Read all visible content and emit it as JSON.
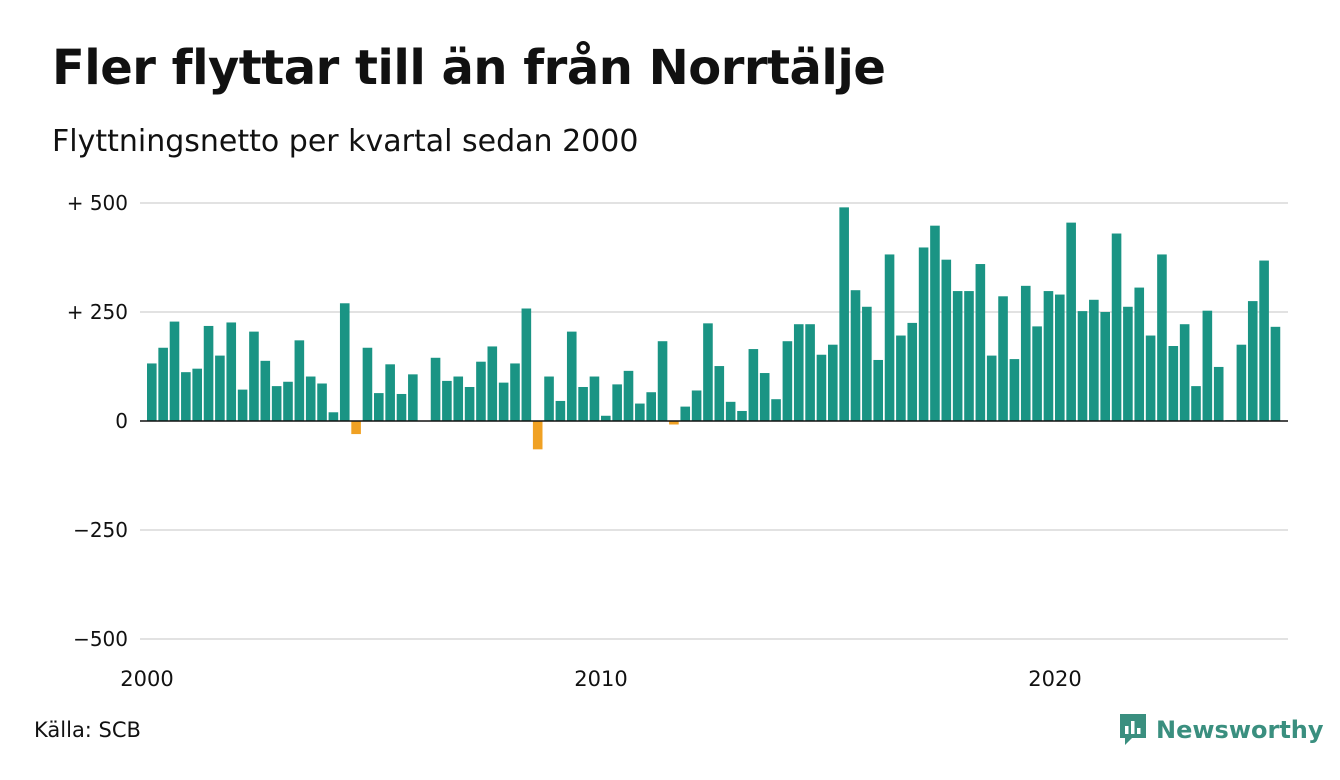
{
  "header": {
    "title": "Fler flyttar till än från Norrtälje",
    "subtitle": "Flyttningsnetto per kvartal sedan 2000"
  },
  "footer": {
    "source": "Källa: SCB",
    "brand": "Newsworthy",
    "brand_icon": "newsworthy-logo-icon"
  },
  "colors": {
    "positive": "#1a9484",
    "negative": "#f0a123",
    "grid": "#e2e2e2",
    "zero_line": "#111111",
    "brand": "#3a8f7f"
  },
  "chart_data": {
    "type": "bar",
    "title": "Fler flyttar till än från Norrtälje",
    "subtitle": "Flyttningsnetto per kvartal sedan 2000",
    "ylim": [
      -500,
      500
    ],
    "y_ticks": [
      500,
      250,
      0,
      -250,
      -500
    ],
    "y_tick_labels": [
      "+ 500",
      "+ 250",
      "0",
      "−250",
      "−500"
    ],
    "x_tick_labels": [
      "2000",
      "2010",
      "2020"
    ],
    "x_tick_indices": [
      0,
      40,
      80
    ],
    "grid": true,
    "categories": [
      "2000 K1",
      "2000 K2",
      "2000 K3",
      "2000 K4",
      "2001 K1",
      "2001 K2",
      "2001 K3",
      "2001 K4",
      "2002 K1",
      "2002 K2",
      "2002 K3",
      "2002 K4",
      "2003 K1",
      "2003 K2",
      "2003 K3",
      "2003 K4",
      "2004 K1",
      "2004 K2",
      "2004 K3",
      "2004 K4",
      "2005 K1",
      "2005 K2",
      "2005 K3",
      "2005 K4",
      "2006 K1",
      "2006 K2",
      "2006 K3",
      "2006 K4",
      "2007 K1",
      "2007 K2",
      "2007 K3",
      "2007 K4",
      "2008 K1",
      "2008 K2",
      "2008 K3",
      "2008 K4",
      "2009 K1",
      "2009 K2",
      "2009 K3",
      "2009 K4",
      "2010 K1",
      "2010 K2",
      "2010 K3",
      "2010 K4",
      "2011 K1",
      "2011 K2",
      "2011 K3",
      "2011 K4",
      "2012 K1",
      "2012 K2",
      "2012 K3",
      "2012 K4",
      "2013 K1",
      "2013 K2",
      "2013 K3",
      "2013 K4",
      "2014 K1",
      "2014 K2",
      "2014 K3",
      "2014 K4",
      "2015 K1",
      "2015 K2",
      "2015 K3",
      "2015 K4",
      "2016 K1",
      "2016 K2",
      "2016 K3",
      "2016 K4",
      "2017 K1",
      "2017 K2",
      "2017 K3",
      "2017 K4",
      "2018 K1",
      "2018 K2",
      "2018 K3",
      "2018 K4",
      "2019 K1",
      "2019 K2",
      "2019 K3",
      "2019 K4",
      "2020 K1",
      "2020 K2",
      "2020 K3",
      "2020 K4",
      "2021 K1",
      "2021 K2",
      "2021 K3",
      "2021 K4",
      "2022 K1",
      "2022 K2",
      "2022 K3",
      "2022 K4",
      "2023 K1",
      "2023 K2",
      "2023 K3",
      "2023 K4",
      "2024 K1",
      "2024 K2",
      "2024 K3",
      "2024 K4"
    ],
    "values": [
      132,
      168,
      228,
      112,
      120,
      218,
      150,
      226,
      72,
      205,
      138,
      80,
      90,
      185,
      102,
      86,
      20,
      270,
      -30,
      168,
      64,
      130,
      62,
      107,
      0,
      145,
      92,
      102,
      78,
      136,
      171,
      88,
      132,
      258,
      -65,
      102,
      46,
      205,
      78,
      102,
      12,
      84,
      115,
      40,
      66,
      183,
      -8,
      33,
      70,
      224,
      126,
      44,
      23,
      165,
      110,
      50,
      183,
      222,
      222,
      152,
      175,
      490,
      300,
      262,
      140,
      382,
      196,
      225,
      398,
      448,
      370,
      298,
      298,
      360,
      150,
      286,
      142,
      310,
      217,
      298,
      290,
      455,
      252,
      278,
      250,
      430,
      262,
      306,
      196,
      382,
      172,
      222,
      80,
      253,
      124,
      2,
      175,
      275,
      368,
      216
    ]
  }
}
